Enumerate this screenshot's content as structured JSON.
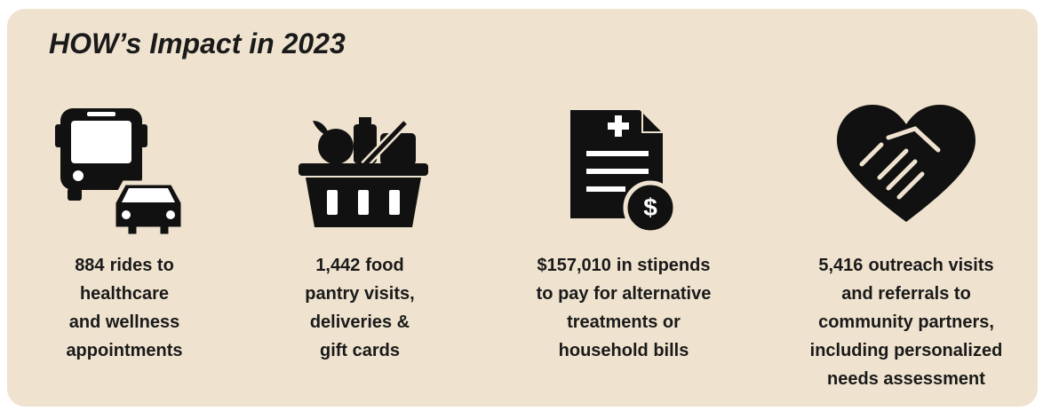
{
  "title": "HOW’s Impact in 2023",
  "items": [
    {
      "stat": "884",
      "lines": [
        "rides to",
        "healthcare",
        "and wellness",
        "appointments"
      ]
    },
    {
      "stat": "1,442",
      "lines": [
        "food",
        "pantry visits,",
        "deliveries &",
        "gift cards"
      ]
    },
    {
      "stat": "$157,010",
      "lines": [
        "in stipends",
        "to pay for alternative",
        "treatments or",
        "household bills"
      ]
    },
    {
      "stat": "5,416",
      "lines": [
        "outreach visits",
        "and referrals to",
        "community partners,",
        "including personalized",
        "needs assessment"
      ]
    }
  ]
}
